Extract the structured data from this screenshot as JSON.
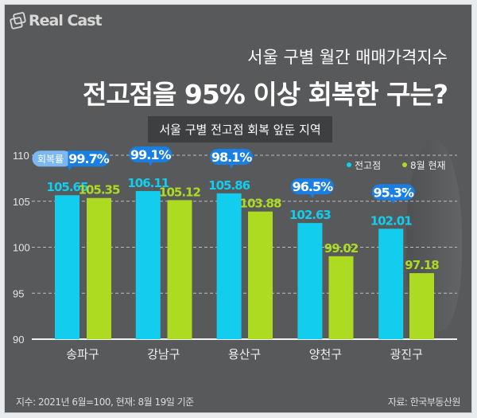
{
  "brand": {
    "logo_text": "Real Cast"
  },
  "header": {
    "subtitle": "서울 구별 월간 매매가격지수",
    "title": "전고점을 95% 이상 회복한 구는?",
    "box_label": "서울 구별 전고점 회복 앞둔 지역"
  },
  "footer": {
    "note": "지수: 2021년 6월=100, 현재: 8월 19일 기준",
    "source": "자료: 한국부동산원"
  },
  "colors": {
    "peak": "#13cdee",
    "current": "#addb21",
    "badge": "#1a7fe3",
    "badge_label": "#7bb8f0"
  },
  "chart_data": {
    "type": "bar",
    "title": "서울 구별 전고점 회복 앞둔 지역",
    "categories": [
      "송파구",
      "강남구",
      "용산구",
      "양천구",
      "광진구"
    ],
    "series": [
      {
        "name": "전고점",
        "values": [
          105.65,
          106.11,
          105.86,
          102.63,
          102.01
        ],
        "labels": [
          "105.65",
          "106.11",
          "105.86",
          "102.63",
          "102.01"
        ]
      },
      {
        "name": "8월 현재",
        "values": [
          105.35,
          105.12,
          103.88,
          99.02,
          97.18
        ],
        "labels": [
          "105.35",
          "105.12",
          "103.88",
          "99.02",
          "97.18"
        ]
      }
    ],
    "recovery_label": "회복률",
    "recovery": [
      "99.7%",
      "99.1%",
      "98.1%",
      "96.5%",
      "95.3%"
    ],
    "ylim": [
      90,
      110
    ],
    "yticks": [
      "90",
      "95",
      "100",
      "105",
      "110"
    ],
    "grid": true,
    "legend_position": "top-right"
  }
}
